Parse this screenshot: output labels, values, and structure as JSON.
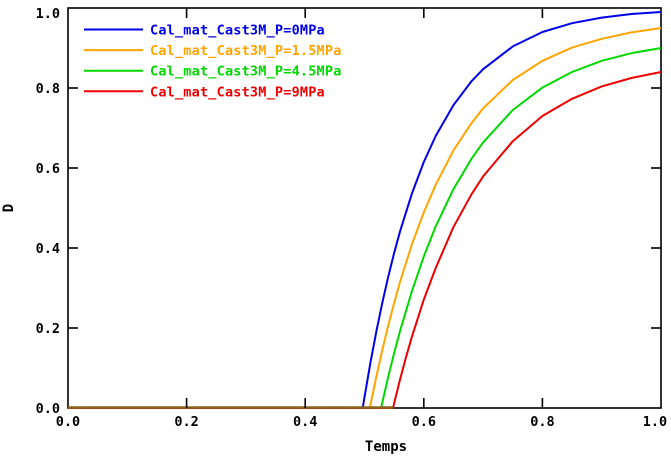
{
  "figure": {
    "background": "#ffffff",
    "frame_color": "#000000",
    "text_color": "#000000"
  },
  "chart_data": {
    "type": "line",
    "title": "",
    "xlabel": "Temps",
    "ylabel": "D",
    "xlim": [
      0.0,
      1.0
    ],
    "ylim": [
      0.0,
      1.0
    ],
    "grid": false,
    "legend_position": "top-left-inside",
    "xticks": {
      "values": [
        0.0,
        0.2,
        0.4,
        0.6,
        0.8,
        1.0
      ],
      "labels": [
        "0.0",
        "0.2",
        "0.4",
        "0.6",
        "0.8",
        "1.0"
      ]
    },
    "yticks": {
      "values": [
        0.0,
        0.2,
        0.4,
        0.6,
        0.8,
        1.0
      ],
      "labels": [
        "0.0",
        "0.2",
        "0.4",
        "0.6",
        "0.8",
        "1.0"
      ]
    },
    "baseline_overlap": {
      "comment_color_of_overlapping_curves_on_x_axis": "brown",
      "color": "#8a6519",
      "from_x": 0.0,
      "to_x": 0.548,
      "y": 0.0
    },
    "series": [
      {
        "name": "Cal_mat_Cast3M_P=0MPa",
        "color": "#0000e8",
        "takeoff_x": 0.497,
        "end_value": 0.99,
        "points": [
          [
            0.0,
            0
          ],
          [
            0.497,
            0
          ],
          [
            0.5,
            0.027
          ],
          [
            0.51,
            0.113
          ],
          [
            0.52,
            0.192
          ],
          [
            0.53,
            0.263
          ],
          [
            0.54,
            0.328
          ],
          [
            0.55,
            0.388
          ],
          [
            0.56,
            0.442
          ],
          [
            0.58,
            0.536
          ],
          [
            0.6,
            0.615
          ],
          [
            0.62,
            0.68
          ],
          [
            0.65,
            0.757
          ],
          [
            0.68,
            0.816
          ],
          [
            0.7,
            0.847
          ],
          [
            0.75,
            0.904
          ],
          [
            0.8,
            0.94
          ],
          [
            0.85,
            0.962
          ],
          [
            0.9,
            0.976
          ],
          [
            0.95,
            0.985
          ],
          [
            1.0,
            0.99
          ]
        ]
      },
      {
        "name": "Cal_mat_Cast3M_P=1.5MPa",
        "color": "#ffa400",
        "takeoff_x": 0.509,
        "end_value": 0.95,
        "points": [
          [
            0.0,
            0
          ],
          [
            0.509,
            0
          ],
          [
            0.52,
            0.079
          ],
          [
            0.53,
            0.145
          ],
          [
            0.54,
            0.206
          ],
          [
            0.55,
            0.263
          ],
          [
            0.56,
            0.316
          ],
          [
            0.58,
            0.409
          ],
          [
            0.6,
            0.489
          ],
          [
            0.62,
            0.558
          ],
          [
            0.65,
            0.644
          ],
          [
            0.68,
            0.711
          ],
          [
            0.7,
            0.749
          ],
          [
            0.75,
            0.82
          ],
          [
            0.8,
            0.868
          ],
          [
            0.85,
            0.901
          ],
          [
            0.9,
            0.923
          ],
          [
            0.95,
            0.939
          ],
          [
            1.0,
            0.95
          ]
        ]
      },
      {
        "name": "Cal_mat_Cast3M_P=4.5MPa",
        "color": "#00d800",
        "takeoff_x": 0.528,
        "end_value": 0.9,
        "points": [
          [
            0.0,
            0
          ],
          [
            0.528,
            0
          ],
          [
            0.54,
            0.078
          ],
          [
            0.55,
            0.138
          ],
          [
            0.56,
            0.193
          ],
          [
            0.58,
            0.292
          ],
          [
            0.6,
            0.379
          ],
          [
            0.62,
            0.454
          ],
          [
            0.65,
            0.547
          ],
          [
            0.68,
            0.622
          ],
          [
            0.7,
            0.664
          ],
          [
            0.75,
            0.745
          ],
          [
            0.8,
            0.801
          ],
          [
            0.85,
            0.84
          ],
          [
            0.9,
            0.868
          ],
          [
            0.95,
            0.887
          ],
          [
            1.0,
            0.9
          ]
        ]
      },
      {
        "name": "Cal_mat_Cast3M_P=9MPa",
        "color": "#ee0000",
        "takeoff_x": 0.548,
        "end_value": 0.84,
        "points": [
          [
            0.0,
            0
          ],
          [
            0.548,
            0
          ],
          [
            0.56,
            0.072
          ],
          [
            0.57,
            0.127
          ],
          [
            0.58,
            0.178
          ],
          [
            0.6,
            0.271
          ],
          [
            0.62,
            0.35
          ],
          [
            0.65,
            0.452
          ],
          [
            0.68,
            0.533
          ],
          [
            0.7,
            0.579
          ],
          [
            0.75,
            0.667
          ],
          [
            0.8,
            0.73
          ],
          [
            0.85,
            0.773
          ],
          [
            0.9,
            0.804
          ],
          [
            0.95,
            0.825
          ],
          [
            1.0,
            0.84
          ]
        ]
      }
    ]
  }
}
